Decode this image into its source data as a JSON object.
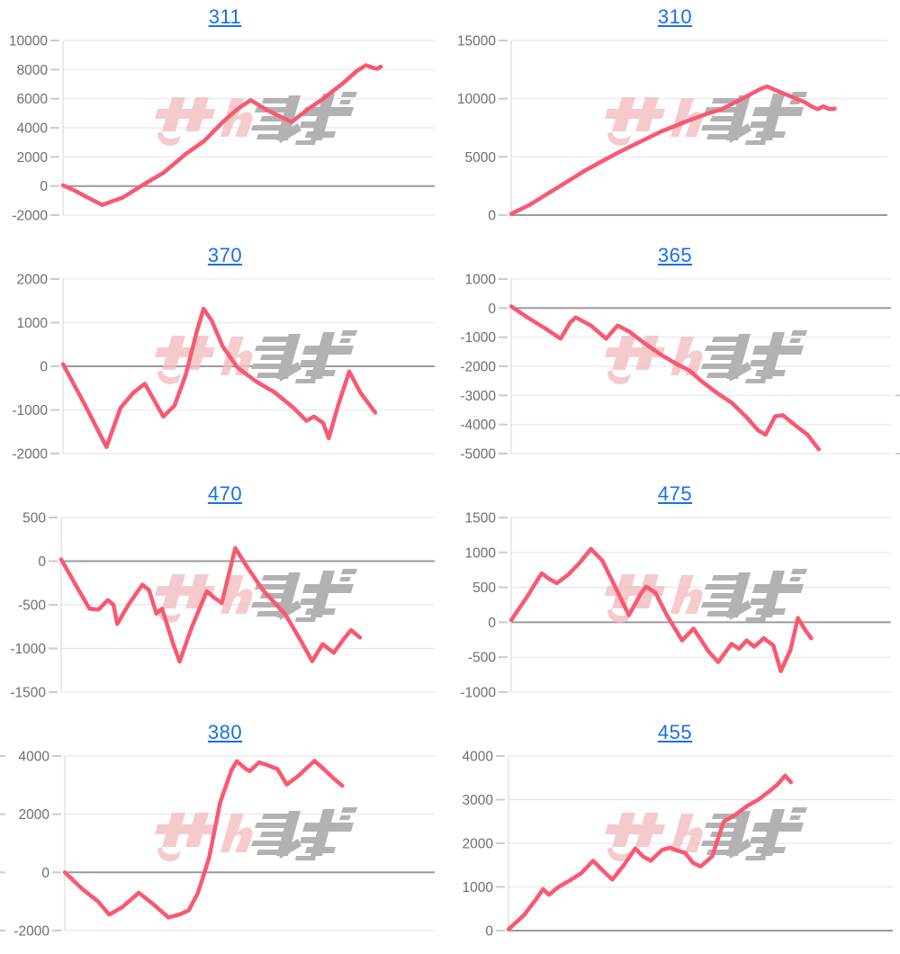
{
  "watermark": {
    "label": "みんレポ",
    "pink_color": "#f2bec2",
    "gray_color": "#b3b1b1"
  },
  "colors": {
    "line": "#f95970",
    "grid": "#e7e7e7",
    "zero_line": "#9b9b9b",
    "axis": "#dcdcdc",
    "tick": "#cccccc",
    "tick_label": "#6e6e6e",
    "link": "#1b6fe8"
  },
  "chart_data": [
    {
      "type": "line",
      "title": "311",
      "title_is_link": true,
      "ylim": [
        -2000,
        10000
      ],
      "yticks": [
        10000,
        8000,
        6000,
        4000,
        2000,
        0,
        -2000
      ],
      "points": [
        [
          0,
          50
        ],
        [
          0.03,
          -300
        ],
        [
          0.105,
          -1300
        ],
        [
          0.16,
          -800
        ],
        [
          0.22,
          150
        ],
        [
          0.27,
          900
        ],
        [
          0.33,
          2200
        ],
        [
          0.38,
          3100
        ],
        [
          0.43,
          4400
        ],
        [
          0.47,
          5300
        ],
        [
          0.505,
          5900
        ],
        [
          0.55,
          5200
        ],
        [
          0.615,
          4400
        ],
        [
          0.66,
          5300
        ],
        [
          0.7,
          6000
        ],
        [
          0.75,
          7000
        ],
        [
          0.79,
          7900
        ],
        [
          0.815,
          8300
        ],
        [
          0.83,
          8150
        ],
        [
          0.845,
          8050
        ],
        [
          0.855,
          8200
        ]
      ]
    },
    {
      "type": "line",
      "title": "310",
      "title_is_link": true,
      "ylim": [
        0,
        15000
      ],
      "yticks": [
        15000,
        10000,
        5000,
        0
      ],
      "points": [
        [
          0,
          100
        ],
        [
          0.05,
          900
        ],
        [
          0.09,
          1700
        ],
        [
          0.13,
          2500
        ],
        [
          0.2,
          3900
        ],
        [
          0.28,
          5300
        ],
        [
          0.33,
          6100
        ],
        [
          0.4,
          7200
        ],
        [
          0.47,
          8100
        ],
        [
          0.52,
          8700
        ],
        [
          0.56,
          9100
        ],
        [
          0.62,
          10100
        ],
        [
          0.66,
          10800
        ],
        [
          0.68,
          11050
        ],
        [
          0.72,
          10500
        ],
        [
          0.78,
          9700
        ],
        [
          0.8,
          9300
        ],
        [
          0.815,
          9100
        ],
        [
          0.83,
          9350
        ],
        [
          0.845,
          9100
        ],
        [
          0.86,
          9150
        ]
      ]
    },
    {
      "type": "line",
      "title": "370",
      "title_is_link": true,
      "ylim": [
        -2000,
        2000
      ],
      "yticks": [
        2000,
        1000,
        0,
        -1000,
        -2000
      ],
      "points": [
        [
          0,
          50
        ],
        [
          0.06,
          -900
        ],
        [
          0.117,
          -1850
        ],
        [
          0.155,
          -950
        ],
        [
          0.19,
          -600
        ],
        [
          0.22,
          -400
        ],
        [
          0.27,
          -1150
        ],
        [
          0.3,
          -900
        ],
        [
          0.33,
          -200
        ],
        [
          0.36,
          800
        ],
        [
          0.378,
          1320
        ],
        [
          0.4,
          1050
        ],
        [
          0.43,
          450
        ],
        [
          0.47,
          -30
        ],
        [
          0.52,
          -350
        ],
        [
          0.57,
          -600
        ],
        [
          0.62,
          -950
        ],
        [
          0.655,
          -1250
        ],
        [
          0.675,
          -1150
        ],
        [
          0.7,
          -1300
        ],
        [
          0.715,
          -1650
        ],
        [
          0.74,
          -900
        ],
        [
          0.77,
          -120
        ],
        [
          0.8,
          -600
        ],
        [
          0.84,
          -1060
        ]
      ]
    },
    {
      "type": "line",
      "title": "365",
      "title_is_link": true,
      "ylim": [
        -5000,
        1000
      ],
      "yticks": [
        1000,
        0,
        -1000,
        -2000,
        -3000,
        -4000,
        -5000
      ],
      "points": [
        [
          0,
          60
        ],
        [
          0.04,
          -300
        ],
        [
          0.09,
          -700
        ],
        [
          0.13,
          -1050
        ],
        [
          0.155,
          -500
        ],
        [
          0.17,
          -320
        ],
        [
          0.21,
          -600
        ],
        [
          0.25,
          -1050
        ],
        [
          0.28,
          -600
        ],
        [
          0.31,
          -800
        ],
        [
          0.35,
          -1200
        ],
        [
          0.4,
          -1650
        ],
        [
          0.44,
          -1950
        ],
        [
          0.47,
          -2150
        ],
        [
          0.5,
          -2500
        ],
        [
          0.54,
          -2900
        ],
        [
          0.58,
          -3250
        ],
        [
          0.62,
          -3750
        ],
        [
          0.65,
          -4200
        ],
        [
          0.67,
          -4350
        ],
        [
          0.695,
          -3720
        ],
        [
          0.715,
          -3680
        ],
        [
          0.75,
          -4050
        ],
        [
          0.78,
          -4350
        ],
        [
          0.81,
          -4850
        ]
      ]
    },
    {
      "type": "line",
      "title": "470",
      "title_is_link": true,
      "ylim": [
        -1500,
        500
      ],
      "yticks": [
        500,
        0,
        -500,
        -1000,
        -1500
      ],
      "points": [
        [
          0,
          20
        ],
        [
          0.04,
          -280
        ],
        [
          0.076,
          -545
        ],
        [
          0.1,
          -555
        ],
        [
          0.125,
          -445
        ],
        [
          0.14,
          -500
        ],
        [
          0.15,
          -720
        ],
        [
          0.18,
          -500
        ],
        [
          0.217,
          -270
        ],
        [
          0.235,
          -330
        ],
        [
          0.255,
          -600
        ],
        [
          0.27,
          -545
        ],
        [
          0.3,
          -950
        ],
        [
          0.317,
          -1150
        ],
        [
          0.35,
          -750
        ],
        [
          0.39,
          -345
        ],
        [
          0.41,
          -420
        ],
        [
          0.43,
          -480
        ],
        [
          0.466,
          150
        ],
        [
          0.5,
          -80
        ],
        [
          0.54,
          -330
        ],
        [
          0.6,
          -610
        ],
        [
          0.64,
          -900
        ],
        [
          0.672,
          -1145
        ],
        [
          0.7,
          -950
        ],
        [
          0.715,
          -1000
        ],
        [
          0.73,
          -1050
        ],
        [
          0.755,
          -900
        ],
        [
          0.776,
          -790
        ],
        [
          0.8,
          -875
        ]
      ]
    },
    {
      "type": "line",
      "title": "475",
      "title_is_link": true,
      "ylim": [
        -1000,
        1500
      ],
      "yticks": [
        1500,
        1000,
        500,
        0,
        -500,
        -1000
      ],
      "points": [
        [
          0,
          30
        ],
        [
          0.04,
          350
        ],
        [
          0.08,
          700
        ],
        [
          0.1,
          620
        ],
        [
          0.12,
          560
        ],
        [
          0.15,
          680
        ],
        [
          0.18,
          850
        ],
        [
          0.21,
          1050
        ],
        [
          0.24,
          880
        ],
        [
          0.27,
          550
        ],
        [
          0.31,
          100
        ],
        [
          0.34,
          400
        ],
        [
          0.355,
          510
        ],
        [
          0.38,
          420
        ],
        [
          0.41,
          100
        ],
        [
          0.45,
          -260
        ],
        [
          0.48,
          -90
        ],
        [
          0.52,
          -420
        ],
        [
          0.545,
          -570
        ],
        [
          0.58,
          -310
        ],
        [
          0.6,
          -380
        ],
        [
          0.62,
          -260
        ],
        [
          0.64,
          -350
        ],
        [
          0.665,
          -230
        ],
        [
          0.69,
          -330
        ],
        [
          0.71,
          -700
        ],
        [
          0.735,
          -400
        ],
        [
          0.755,
          60
        ],
        [
          0.775,
          -120
        ],
        [
          0.79,
          -230
        ]
      ]
    },
    {
      "type": "line",
      "title": "380",
      "title_is_link": true,
      "ylim": [
        -2000,
        4000
      ],
      "yticks": [
        4000,
        2000,
        0,
        -2000
      ],
      "points": [
        [
          0,
          0
        ],
        [
          0.05,
          -600
        ],
        [
          0.09,
          -1000
        ],
        [
          0.12,
          -1450
        ],
        [
          0.155,
          -1200
        ],
        [
          0.2,
          -700
        ],
        [
          0.24,
          -1100
        ],
        [
          0.28,
          -1550
        ],
        [
          0.31,
          -1450
        ],
        [
          0.335,
          -1300
        ],
        [
          0.36,
          -700
        ],
        [
          0.39,
          500
        ],
        [
          0.42,
          2400
        ],
        [
          0.45,
          3500
        ],
        [
          0.465,
          3820
        ],
        [
          0.49,
          3550
        ],
        [
          0.5,
          3480
        ],
        [
          0.525,
          3780
        ],
        [
          0.545,
          3700
        ],
        [
          0.575,
          3550
        ],
        [
          0.6,
          3020
        ],
        [
          0.63,
          3300
        ],
        [
          0.655,
          3600
        ],
        [
          0.675,
          3830
        ],
        [
          0.7,
          3550
        ],
        [
          0.725,
          3250
        ],
        [
          0.75,
          2980
        ]
      ]
    },
    {
      "type": "line",
      "title": "455",
      "title_is_link": true,
      "ylim": [
        0,
        4000
      ],
      "yticks": [
        4000,
        3000,
        2000,
        1000,
        0
      ],
      "points": [
        [
          0,
          30
        ],
        [
          0.04,
          350
        ],
        [
          0.07,
          700
        ],
        [
          0.09,
          950
        ],
        [
          0.105,
          820
        ],
        [
          0.13,
          1000
        ],
        [
          0.16,
          1150
        ],
        [
          0.19,
          1320
        ],
        [
          0.22,
          1600
        ],
        [
          0.245,
          1380
        ],
        [
          0.27,
          1170
        ],
        [
          0.3,
          1500
        ],
        [
          0.33,
          1880
        ],
        [
          0.35,
          1700
        ],
        [
          0.37,
          1600
        ],
        [
          0.4,
          1850
        ],
        [
          0.42,
          1900
        ],
        [
          0.44,
          1830
        ],
        [
          0.46,
          1780
        ],
        [
          0.48,
          1550
        ],
        [
          0.5,
          1470
        ],
        [
          0.53,
          1700
        ],
        [
          0.56,
          2500
        ],
        [
          0.59,
          2650
        ],
        [
          0.62,
          2850
        ],
        [
          0.65,
          3000
        ],
        [
          0.68,
          3200
        ],
        [
          0.7,
          3350
        ],
        [
          0.72,
          3550
        ],
        [
          0.735,
          3400
        ]
      ]
    }
  ]
}
